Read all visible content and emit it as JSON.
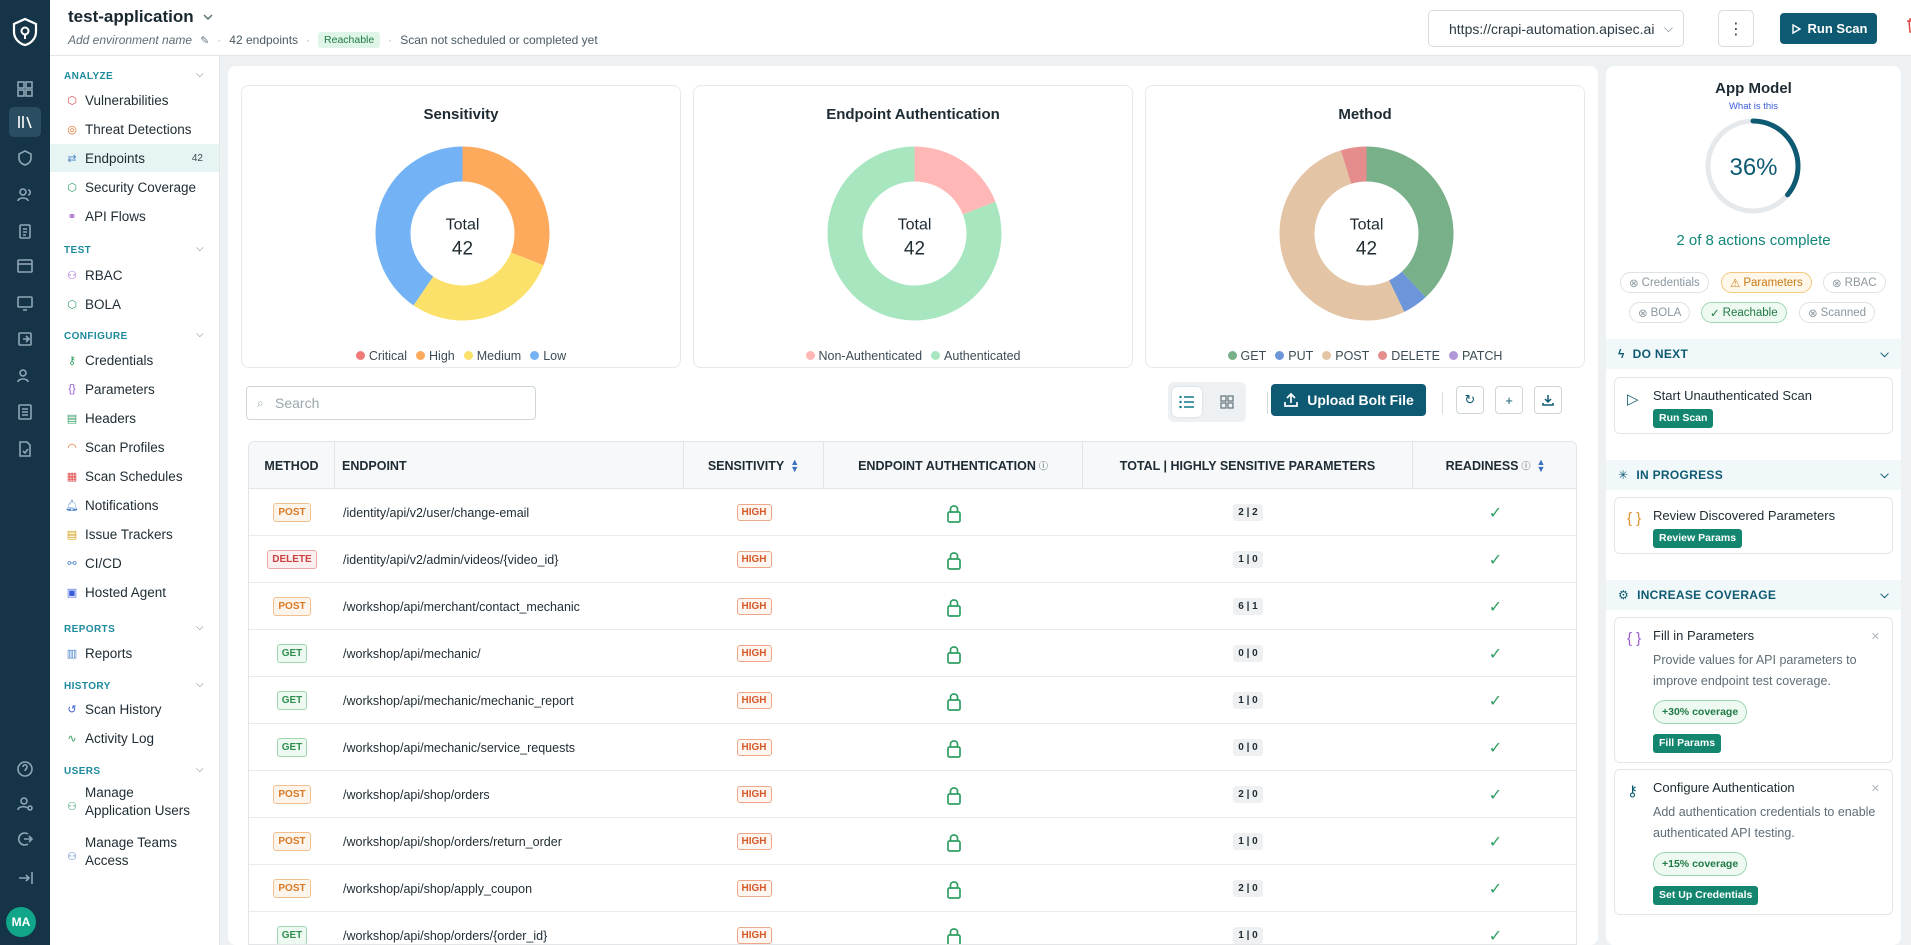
{
  "header": {
    "app_name": "test-application",
    "env_placeholder": "Add environment name",
    "endpoints_count": "42 endpoints",
    "reachable_badge": "Reachable",
    "scan_status": "Scan not scheduled or completed yet",
    "url": "https://crapi-automation.apisec.ai",
    "run_scan": "Run Scan"
  },
  "sidebar": {
    "sections": {
      "analyze": "ANALYZE",
      "test": "TEST",
      "configure": "CONFIGURE",
      "reports": "REPORTS",
      "history": "HISTORY",
      "users": "USERS"
    },
    "items": {
      "vulnerabilities": "Vulnerabilities",
      "threat_detections": "Threat Detections",
      "endpoints": "Endpoints",
      "endpoints_count": "42",
      "security_coverage": "Security Coverage",
      "api_flows": "API Flows",
      "rbac": "RBAC",
      "bola": "BOLA",
      "credentials": "Credentials",
      "parameters": "Parameters",
      "headers": "Headers",
      "scan_profiles": "Scan Profiles",
      "scan_schedules": "Scan Schedules",
      "notifications": "Notifications",
      "issue_trackers": "Issue Trackers",
      "cicd": "CI/CD",
      "hosted_agent": "Hosted Agent",
      "reports": "Reports",
      "scan_history": "Scan History",
      "activity_log": "Activity Log",
      "manage_app_users_1": "Manage",
      "manage_app_users_2": "Application Users",
      "manage_teams_1": "Manage Teams",
      "manage_teams_2": "Access"
    },
    "avatar": "MA"
  },
  "charts": {
    "total_label": "Total",
    "sensitivity": {
      "title": "Sensitivity",
      "total": "42",
      "legend": [
        "Critical",
        "High",
        "Medium",
        "Low"
      ],
      "colors": [
        "#f07a7a",
        "#fdaa5c",
        "#fbe16a",
        "#73b3f5"
      ],
      "values": [
        0,
        13,
        12,
        17
      ]
    },
    "auth": {
      "title": "Endpoint Authentication",
      "total": "42",
      "legend": [
        "Non-Authenticated",
        "Authenticated"
      ],
      "colors": [
        "#ffb8b5",
        "#a8e6c0"
      ],
      "values": [
        8,
        34
      ]
    },
    "method": {
      "title": "Method",
      "total": "42",
      "legend": [
        "GET",
        "PUT",
        "POST",
        "DELETE",
        "PATCH"
      ],
      "colors": [
        "#78b08a",
        "#6d95d9",
        "#e3c4a5",
        "#e58c8c",
        "#b297d8"
      ],
      "values": [
        16,
        2,
        22,
        2,
        0
      ]
    }
  },
  "toolbar": {
    "search_placeholder": "Search",
    "upload": "Upload Bolt File"
  },
  "table": {
    "headers": [
      "METHOD",
      "ENDPOINT",
      "SENSITIVITY",
      "ENDPOINT AUTHENTICATION",
      "TOTAL | HIGHLY SENSITIVE PARAMETERS",
      "READINESS"
    ],
    "rows": [
      {
        "method": "POST",
        "endpoint": "/identity/api/v2/user/change-email",
        "sensitivity": "HIGH",
        "params": "2 | 2"
      },
      {
        "method": "DELETE",
        "endpoint": "/identity/api/v2/admin/videos/{video_id}",
        "sensitivity": "HIGH",
        "params": "1 | 0"
      },
      {
        "method": "POST",
        "endpoint": "/workshop/api/merchant/contact_mechanic",
        "sensitivity": "HIGH",
        "params": "6 | 1"
      },
      {
        "method": "GET",
        "endpoint": "/workshop/api/mechanic/",
        "sensitivity": "HIGH",
        "params": "0 | 0"
      },
      {
        "method": "GET",
        "endpoint": "/workshop/api/mechanic/mechanic_report",
        "sensitivity": "HIGH",
        "params": "1 | 0"
      },
      {
        "method": "GET",
        "endpoint": "/workshop/api/mechanic/service_requests",
        "sensitivity": "HIGH",
        "params": "0 | 0"
      },
      {
        "method": "POST",
        "endpoint": "/workshop/api/shop/orders",
        "sensitivity": "HIGH",
        "params": "2 | 0"
      },
      {
        "method": "POST",
        "endpoint": "/workshop/api/shop/orders/return_order",
        "sensitivity": "HIGH",
        "params": "1 | 0"
      },
      {
        "method": "POST",
        "endpoint": "/workshop/api/shop/apply_coupon",
        "sensitivity": "HIGH",
        "params": "2 | 0"
      },
      {
        "method": "GET",
        "endpoint": "/workshop/api/shop/orders/{order_id}",
        "sensitivity": "HIGH",
        "params": "1 | 0"
      }
    ]
  },
  "app_model": {
    "title": "App Model",
    "link": "What is this",
    "percent_text": "36%",
    "percent": 36,
    "complete": "2 of 8 actions complete",
    "chips": [
      "Credentials",
      "Parameters",
      "RBAC",
      "BOLA",
      "Reachable",
      "Scanned"
    ],
    "do_next": "DO NEXT",
    "start_unauth": "Start Unauthenticated Scan",
    "run_scan_btn": "Run Scan",
    "in_progress": "IN PROGRESS",
    "review_params": "Review Discovered Parameters",
    "review_params_btn": "Review Params",
    "increase_coverage": "INCREASE COVERAGE",
    "fill_params": "Fill in Parameters",
    "fill_params_desc": "Provide values for API parameters to improve endpoint test coverage.",
    "fill_cov": "+30% coverage",
    "fill_params_btn": "Fill Params",
    "config_auth": "Configure Authentication",
    "config_auth_desc": "Add authentication credentials to enable authenticated API testing.",
    "auth_cov": "+15% coverage",
    "auth_btn": "Set Up Credentials"
  }
}
